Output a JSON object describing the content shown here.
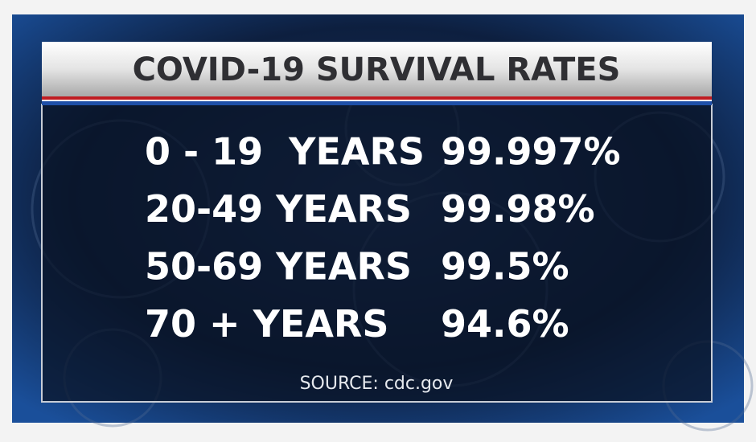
{
  "header": {
    "title": "COVID-19 SURVIVAL RATES"
  },
  "table": {
    "rows": [
      [
        "0 - 19  YEARS",
        "99.997%"
      ],
      [
        "20-49 YEARS",
        "99.98%"
      ],
      [
        "50-69 YEARS",
        "99.5%"
      ],
      [
        "70 + YEARS",
        "94.6%"
      ]
    ]
  },
  "footer": {
    "source": "SOURCE: cdc.gov"
  }
}
